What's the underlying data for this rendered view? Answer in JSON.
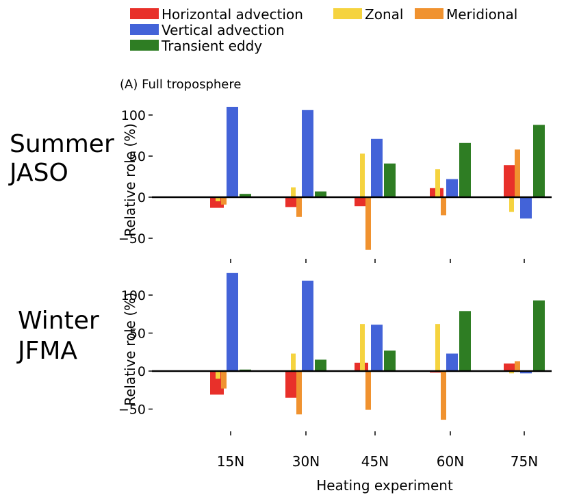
{
  "legend": [
    {
      "label": "Horizontal advection",
      "color": "#e8302a"
    },
    {
      "label": "Vertical advection",
      "color": "#4363d8"
    },
    {
      "label": "Transient eddy",
      "color": "#2e7d23"
    },
    {
      "label": "Zonal",
      "color": "#f5d33f"
    },
    {
      "label": "Meridional",
      "color": "#f0922f"
    }
  ],
  "panel_title": "(A) Full troposphere",
  "seasons": [
    {
      "line1": "Summer",
      "line2": "JASO"
    },
    {
      "line1": "Winter",
      "line2": "JFMA"
    }
  ],
  "ylabel": "Relative role (%)",
  "xlabel": "Heating experiment",
  "chart_data": [
    {
      "type": "bar",
      "title": "(A) Full troposphere",
      "ylabel": "Relative role (%)",
      "xlabel": "",
      "categories": [
        "15N",
        "30N",
        "45N",
        "60N",
        "75N"
      ],
      "ylim": [
        -70,
        135
      ],
      "yticks": [
        -50,
        0,
        50,
        100
      ],
      "series": [
        {
          "name": "Horizontal advection",
          "values": [
            -13,
            -12,
            -11,
            11,
            39
          ]
        },
        {
          "name": "Zonal",
          "values": [
            -5,
            12,
            53,
            34,
            -18
          ]
        },
        {
          "name": "Meridional",
          "values": [
            -9,
            -24,
            -64,
            -22,
            58
          ]
        },
        {
          "name": "Vertical advection",
          "values": [
            110,
            106,
            71,
            22,
            -26
          ]
        },
        {
          "name": "Transient eddy",
          "values": [
            4,
            7,
            41,
            66,
            88
          ]
        }
      ]
    },
    {
      "type": "bar",
      "title": "",
      "ylabel": "Relative role (%)",
      "xlabel": "Heating experiment",
      "categories": [
        "15N",
        "30N",
        "45N",
        "60N",
        "75N"
      ],
      "ylim": [
        -80,
        135
      ],
      "yticks": [
        -50,
        0,
        50,
        100
      ],
      "series": [
        {
          "name": "Horizontal advection",
          "values": [
            -31,
            -35,
            11,
            -2,
            10
          ]
        },
        {
          "name": "Zonal",
          "values": [
            -10,
            23,
            62,
            62,
            -3
          ]
        },
        {
          "name": "Meridional",
          "values": [
            -23,
            -57,
            -51,
            -64,
            13
          ]
        },
        {
          "name": "Vertical advection",
          "values": [
            129,
            119,
            61,
            23,
            -3
          ]
        },
        {
          "name": "Transient eddy",
          "values": [
            2,
            15,
            27,
            79,
            93
          ]
        }
      ]
    }
  ]
}
